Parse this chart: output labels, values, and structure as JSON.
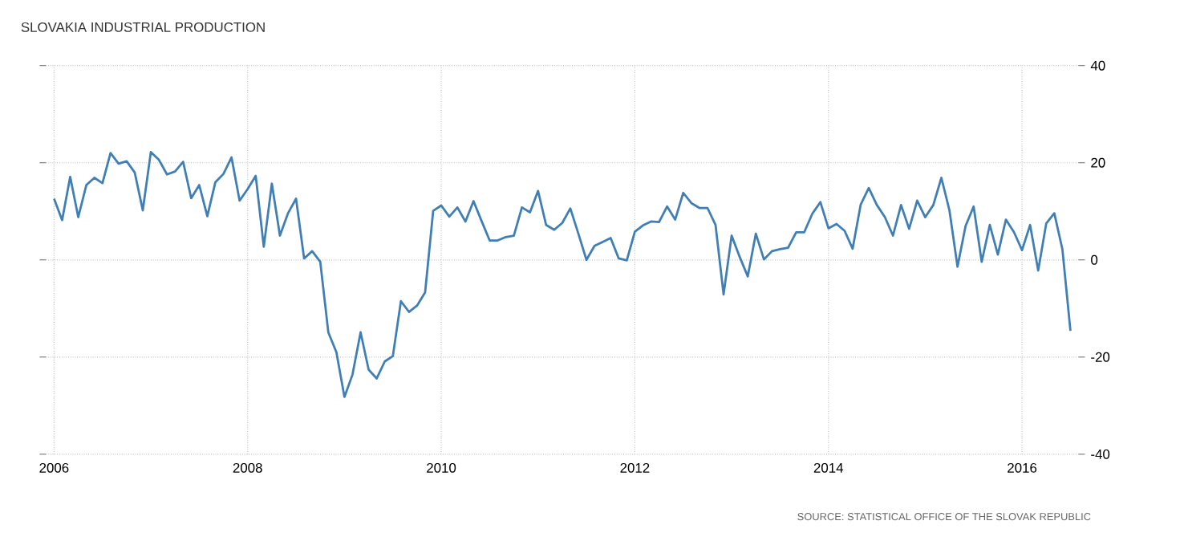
{
  "chart_data": {
    "type": "line",
    "title": "SLOVAKIA INDUSTRIAL PRODUCTION",
    "annotations": [
      "SOURCE: STATISTICAL OFFICE OF THE SLOVAK REPUBLIC"
    ],
    "x": [
      "2006-01",
      "2006-02",
      "2006-03",
      "2006-04",
      "2006-05",
      "2006-06",
      "2006-07",
      "2006-08",
      "2006-09",
      "2006-10",
      "2006-11",
      "2006-12",
      "2007-01",
      "2007-02",
      "2007-03",
      "2007-04",
      "2007-05",
      "2007-06",
      "2007-07",
      "2007-08",
      "2007-09",
      "2007-10",
      "2007-11",
      "2007-12",
      "2008-01",
      "2008-02",
      "2008-03",
      "2008-04",
      "2008-05",
      "2008-06",
      "2008-07",
      "2008-08",
      "2008-09",
      "2008-10",
      "2008-11",
      "2008-12",
      "2009-01",
      "2009-02",
      "2009-03",
      "2009-04",
      "2009-05",
      "2009-06",
      "2009-07",
      "2009-08",
      "2009-09",
      "2009-10",
      "2009-11",
      "2009-12",
      "2010-01",
      "2010-02",
      "2010-03",
      "2010-04",
      "2010-05",
      "2010-06",
      "2010-07",
      "2010-08",
      "2010-09",
      "2010-10",
      "2010-11",
      "2010-12",
      "2011-01",
      "2011-02",
      "2011-03",
      "2011-04",
      "2011-05",
      "2011-06",
      "2011-07",
      "2011-08",
      "2011-09",
      "2011-10",
      "2011-11",
      "2011-12",
      "2012-01",
      "2012-02",
      "2012-03",
      "2012-04",
      "2012-05",
      "2012-06",
      "2012-07",
      "2012-08",
      "2012-09",
      "2012-10",
      "2012-11",
      "2012-12",
      "2013-01",
      "2013-02",
      "2013-03",
      "2013-04",
      "2013-05",
      "2013-06",
      "2013-07",
      "2013-08",
      "2013-09",
      "2013-10",
      "2013-11",
      "2013-12",
      "2014-01",
      "2014-02",
      "2014-03",
      "2014-04",
      "2014-05",
      "2014-06",
      "2014-07",
      "2014-08",
      "2014-09",
      "2014-10",
      "2014-11",
      "2014-12",
      "2015-01",
      "2015-02",
      "2015-03",
      "2015-04",
      "2015-05",
      "2015-06",
      "2015-07",
      "2015-08",
      "2015-09",
      "2015-10",
      "2015-11",
      "2015-12",
      "2016-01",
      "2016-02",
      "2016-03",
      "2016-04",
      "2016-05",
      "2016-06",
      "2016-07"
    ],
    "series": [
      {
        "color": "#3f7fb5",
        "values": [
          12.6,
          8.2,
          17.1,
          8.8,
          15.4,
          16.9,
          15.8,
          22.0,
          19.8,
          20.3,
          18.0,
          10.2,
          22.2,
          20.6,
          17.6,
          18.2,
          20.2,
          12.7,
          15.4,
          9.0,
          16.0,
          17.7,
          21.1,
          12.2,
          14.6,
          17.3,
          2.7,
          15.7,
          5.0,
          9.6,
          12.6,
          0.3,
          1.8,
          -0.4,
          -14.9,
          -19.0,
          -28.2,
          -23.6,
          -14.9,
          -22.6,
          -24.4,
          -20.9,
          -19.8,
          -8.5,
          -10.7,
          -9.4,
          -6.7,
          10.1,
          11.2,
          8.9,
          10.8,
          7.9,
          12.1,
          8.0,
          4.0,
          4.0,
          4.7,
          5.0,
          10.8,
          9.8,
          14.2,
          7.2,
          6.2,
          7.6,
          10.6,
          5.4,
          0.0,
          2.9,
          3.7,
          4.5,
          0.3,
          -0.1,
          5.8,
          7.1,
          7.9,
          7.8,
          11.0,
          8.3,
          13.8,
          11.7,
          10.7,
          10.7,
          7.2,
          -7.1,
          5.0,
          0.6,
          -3.4,
          5.4,
          0.1,
          1.8,
          2.2,
          2.5,
          5.7,
          5.7,
          9.5,
          11.9,
          6.5,
          7.4,
          6.0,
          2.3,
          11.4,
          14.8,
          11.3,
          8.8,
          5.0,
          11.3,
          6.4,
          12.2,
          8.8,
          11.3,
          16.9,
          10.2,
          -1.4,
          7.0,
          11.0,
          -0.4,
          7.2,
          1.1,
          8.3,
          5.7,
          2.0,
          7.2,
          -2.2,
          7.5,
          9.6,
          2.2,
          -14.6
        ]
      }
    ],
    "xlim": [
      "2005-12",
      "2016-08"
    ],
    "xticks": [
      "2006",
      "2008",
      "2010",
      "2012",
      "2014",
      "2016"
    ],
    "ylim": [
      -40,
      40
    ],
    "yticks": [
      -40,
      -20,
      0,
      20,
      40
    ],
    "grid": true,
    "legend": false
  }
}
